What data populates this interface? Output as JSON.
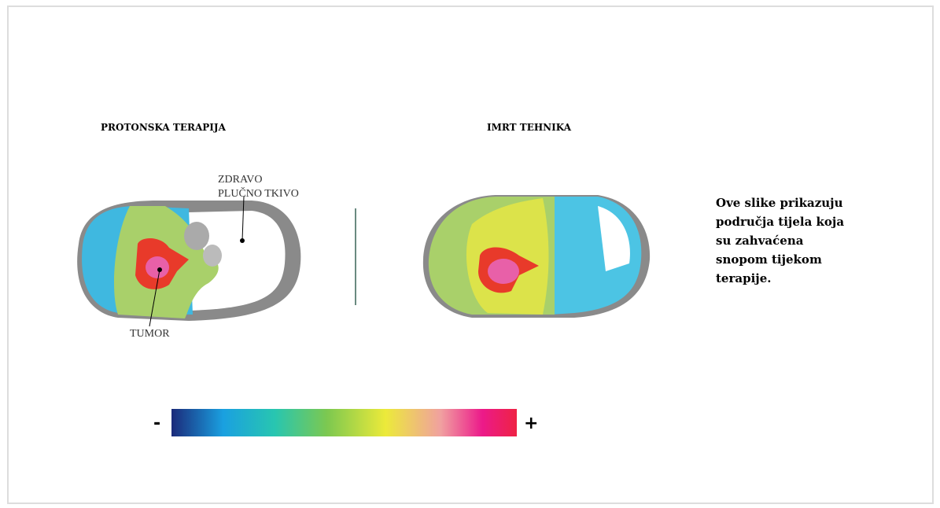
{
  "panels": [
    {
      "title": "PROTONSKA TERAPIJA"
    },
    {
      "title": "IMRT TEHNIKA"
    }
  ],
  "labels": {
    "healthy_tissue": [
      "ZDRAVO",
      "PLUČNO TKIVO"
    ],
    "tumor": "TUMOR"
  },
  "description": [
    "Ove slike prikazuju",
    "područja tijela koja",
    "su zahvaćena",
    "snopom tijekom",
    "terapije."
  ],
  "scale": {
    "low": "-",
    "high": "+"
  }
}
